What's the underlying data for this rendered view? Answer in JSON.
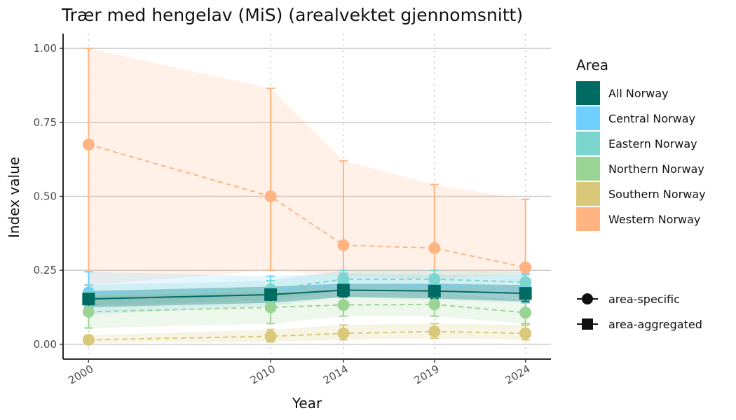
{
  "chart_data": {
    "type": "line",
    "title": "Trær med hengelav (MiS) (arealvektet gjennomsnitt)",
    "xlabel": "Year",
    "ylabel": "Index value",
    "x": [
      2000,
      2010,
      2014,
      2019,
      2024
    ],
    "xlim": [
      1998.6,
      2025.4
    ],
    "ylim": [
      -0.05,
      1.05
    ],
    "yticks": [
      0,
      0.25,
      0.5,
      0.75,
      1.0
    ],
    "ytick_labels": [
      "0.00",
      "0.25",
      "0.50",
      "0.75",
      "1.00"
    ],
    "grid": "horizontal major gridlines; dotted vertical lines at data years",
    "legend": {
      "title": "Area",
      "placement": "right",
      "shape_entries": [
        {
          "label": "area-specific",
          "shape": "circle"
        },
        {
          "label": "area-aggregated",
          "shape": "square"
        }
      ]
    },
    "series": [
      {
        "name": "Western Norway",
        "color": "#FFB482",
        "marker": "circle",
        "line": "dashed",
        "values": [
          0.675,
          0.5,
          0.335,
          0.325,
          0.26
        ],
        "lower": [
          0.2,
          0.25,
          0.23,
          0.22,
          0.24
        ],
        "upper": [
          1.0,
          0.865,
          0.62,
          0.54,
          0.49
        ]
      },
      {
        "name": "Central Norway",
        "color": "#6FCFFF",
        "marker": "circle",
        "line": "dashed",
        "values": [
          0.175,
          0.185,
          0.2,
          0.195,
          0.19
        ],
        "lower": [
          0.1,
          0.13,
          0.16,
          0.15,
          0.14
        ],
        "upper": [
          0.245,
          0.23,
          0.24,
          0.235,
          0.235
        ]
      },
      {
        "name": "Eastern Norway",
        "color": "#7AD6CF",
        "marker": "circle",
        "line": "dashed",
        "values": [
          0.165,
          0.185,
          0.22,
          0.22,
          0.21
        ],
        "lower": [
          0.13,
          0.15,
          0.18,
          0.18,
          0.17
        ],
        "upper": [
          0.2,
          0.215,
          0.25,
          0.25,
          0.245
        ]
      },
      {
        "name": "Northern Norway",
        "color": "#9AD494",
        "marker": "circle",
        "line": "dashed",
        "values": [
          0.11,
          0.125,
          0.133,
          0.135,
          0.107
        ],
        "lower": [
          0.055,
          0.07,
          0.095,
          0.095,
          0.07
        ],
        "upper": [
          0.165,
          0.175,
          0.175,
          0.175,
          0.15
        ]
      },
      {
        "name": "Southern Norway",
        "color": "#D9C87A",
        "marker": "circle",
        "line": "dashed",
        "values": [
          0.015,
          0.027,
          0.037,
          0.043,
          0.037
        ],
        "lower": [
          0.005,
          0.008,
          0.015,
          0.02,
          0.015
        ],
        "upper": [
          0.03,
          0.05,
          0.065,
          0.07,
          0.065
        ]
      },
      {
        "name": "All Norway",
        "color": "#006B63",
        "marker": "square",
        "line": "solid",
        "values": [
          0.153,
          0.168,
          0.183,
          0.18,
          0.172
        ],
        "lower": [
          0.125,
          0.14,
          0.16,
          0.155,
          0.145
        ],
        "upper": [
          0.18,
          0.195,
          0.205,
          0.205,
          0.2
        ]
      }
    ]
  }
}
